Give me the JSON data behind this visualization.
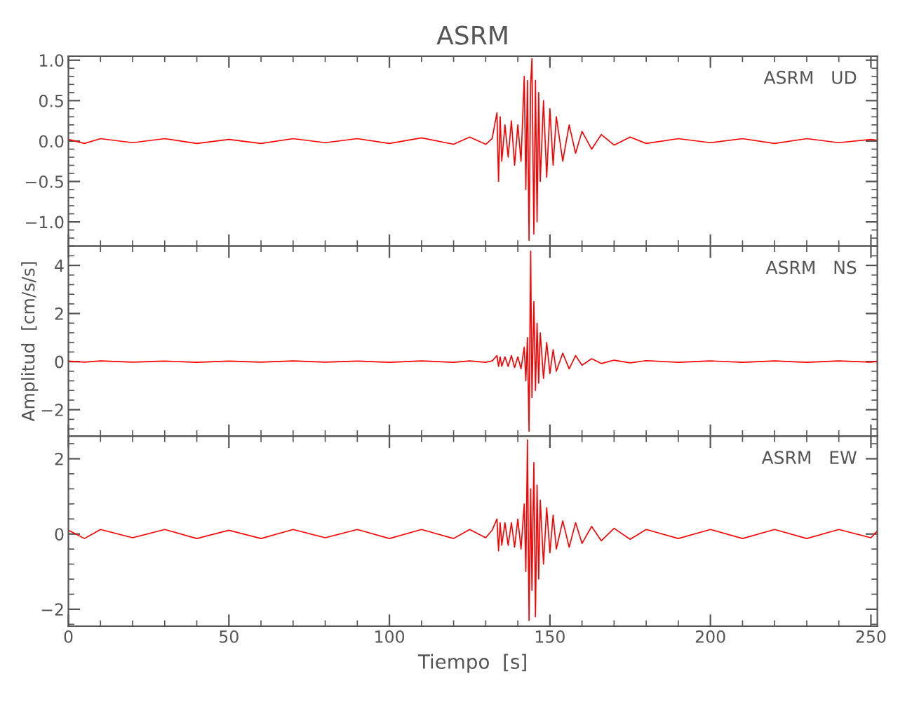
{
  "chart_data": [
    {
      "type": "line",
      "title": "ASRM",
      "annotations": [
        "ASRM   UD"
      ],
      "tick_labels": "y",
      "x": [
        0,
        5,
        10,
        20,
        30,
        40,
        50,
        60,
        70,
        80,
        90,
        100,
        110,
        120,
        125,
        130,
        132,
        133.5,
        134,
        134.5,
        135,
        136,
        137,
        138,
        139,
        140,
        141,
        142,
        142.5,
        143,
        143.5,
        144,
        144.4,
        145,
        145.5,
        146,
        146.5,
        147,
        148,
        149,
        150,
        151,
        152,
        154,
        156,
        158,
        160,
        163,
        166,
        170,
        175,
        180,
        190,
        200,
        210,
        220,
        230,
        240,
        250,
        252
      ],
      "series": [
        {
          "color": "#ff0000",
          "values": [
            0.02,
            -0.03,
            0.03,
            -0.02,
            0.03,
            -0.03,
            0.02,
            -0.03,
            0.03,
            -0.02,
            0.03,
            -0.03,
            0.04,
            -0.04,
            0.05,
            -0.04,
            0.03,
            0.35,
            -0.5,
            0.3,
            -0.25,
            0.2,
            -0.2,
            0.25,
            -0.3,
            0.2,
            -0.25,
            0.8,
            -0.6,
            0.75,
            -1.23,
            0.7,
            1.02,
            -1.15,
            0.75,
            -1.0,
            0.6,
            -0.5,
            0.5,
            -0.45,
            0.4,
            -0.3,
            0.3,
            -0.25,
            0.2,
            -0.15,
            0.12,
            -0.1,
            0.08,
            -0.05,
            0.05,
            -0.03,
            0.03,
            -0.02,
            0.03,
            -0.03,
            0.03,
            -0.02,
            0.02,
            0.01
          ]
        }
      ],
      "xlim": [
        0,
        252
      ],
      "ylim": [
        -1.3,
        1.05
      ],
      "yticks": [
        {
          "value": -1.0,
          "label": "−1.0"
        },
        {
          "value": -0.5,
          "label": "−0.5"
        },
        {
          "value": 0.0,
          "label": "0.0"
        },
        {
          "value": 0.5,
          "label": "0.5"
        },
        {
          "value": 1.0,
          "label": "1.0"
        }
      ]
    },
    {
      "type": "line",
      "ylabel": "Amplitud  [cm/s/s]",
      "annotations": [
        "ASRM   NS"
      ],
      "tick_labels": "y",
      "x": [
        0,
        5,
        10,
        20,
        30,
        40,
        50,
        60,
        70,
        80,
        90,
        100,
        110,
        120,
        125,
        130,
        132,
        133.5,
        134,
        134.5,
        135,
        136,
        137,
        138,
        139,
        140,
        141,
        142,
        142.5,
        143,
        143.5,
        144,
        144.4,
        145,
        145.5,
        146,
        146.5,
        147,
        148,
        149,
        150,
        151,
        152,
        154,
        156,
        158,
        160,
        163,
        166,
        170,
        175,
        180,
        190,
        200,
        210,
        220,
        230,
        240,
        250,
        252
      ],
      "series": [
        {
          "color": "#ff0000",
          "values": [
            0.02,
            -0.02,
            0.03,
            -0.02,
            0.02,
            -0.03,
            0.02,
            -0.02,
            0.03,
            -0.02,
            0.02,
            -0.03,
            0.03,
            -0.03,
            0.03,
            -0.03,
            0.03,
            0.25,
            -0.2,
            0.2,
            -0.2,
            0.2,
            -0.2,
            0.25,
            -0.25,
            0.2,
            -0.3,
            0.6,
            -0.8,
            1.0,
            -2.9,
            4.6,
            -1.5,
            2.5,
            -1.2,
            1.6,
            -0.9,
            1.2,
            -0.7,
            0.8,
            -0.5,
            0.5,
            -0.4,
            0.35,
            -0.3,
            0.25,
            -0.15,
            0.12,
            -0.08,
            0.06,
            -0.05,
            0.04,
            -0.03,
            0.03,
            -0.03,
            0.03,
            -0.03,
            0.03,
            -0.02,
            0.02
          ]
        }
      ],
      "xlim": [
        0,
        252
      ],
      "ylim": [
        -3.1,
        4.8
      ],
      "yticks": [
        {
          "value": -2,
          "label": "−2"
        },
        0,
        2,
        4
      ]
    },
    {
      "type": "line",
      "xlabel": "Tiempo  [s]",
      "annotations": [
        "ASRM   EW"
      ],
      "x": [
        0,
        5,
        10,
        20,
        30,
        40,
        50,
        60,
        70,
        80,
        90,
        100,
        110,
        120,
        125,
        130,
        132,
        133.5,
        134,
        134.5,
        135,
        136,
        137,
        138,
        139,
        140,
        141,
        142,
        142.5,
        143,
        143.5,
        144,
        144.4,
        145,
        145.5,
        146,
        146.5,
        147,
        148,
        149,
        150,
        151,
        152,
        154,
        156,
        158,
        160,
        163,
        166,
        170,
        175,
        180,
        190,
        200,
        210,
        220,
        230,
        240,
        250,
        252
      ],
      "series": [
        {
          "color": "#ff0000",
          "values": [
            0.1,
            -0.12,
            0.12,
            -0.1,
            0.12,
            -0.12,
            0.1,
            -0.12,
            0.12,
            -0.1,
            0.12,
            -0.12,
            0.12,
            -0.12,
            0.12,
            -0.1,
            0.1,
            0.4,
            -0.45,
            0.3,
            -0.3,
            0.3,
            -0.3,
            0.3,
            -0.35,
            0.4,
            -0.4,
            0.8,
            -1.0,
            2.5,
            -2.3,
            1.2,
            -1.5,
            1.9,
            -2.2,
            1.3,
            -1.2,
            0.9,
            -0.8,
            0.7,
            -0.5,
            0.5,
            -0.4,
            0.35,
            -0.35,
            0.3,
            -0.25,
            0.2,
            -0.18,
            0.15,
            -0.14,
            0.12,
            -0.12,
            0.12,
            -0.12,
            0.12,
            -0.12,
            0.12,
            -0.1,
            0.08
          ]
        }
      ],
      "xlim": [
        0,
        252
      ],
      "ylim": [
        -2.45,
        2.6
      ],
      "xticks": [
        0,
        50,
        100,
        150,
        200,
        250
      ],
      "yticks": [
        {
          "value": -2,
          "label": "−2"
        },
        0,
        2
      ]
    }
  ]
}
